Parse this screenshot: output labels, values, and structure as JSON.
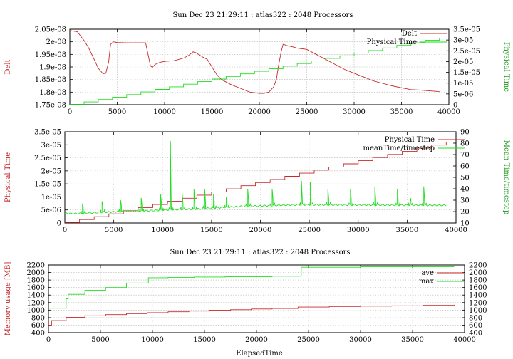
{
  "colors": {
    "red": "#c82a2a",
    "green": "#22dd22",
    "red_label": "#c02020",
    "green_label": "#1a9a1a"
  },
  "chart_data": [
    {
      "type": "line",
      "title": "Sun Dec 23 21:29:11 : atlas322 : 2048 Processors",
      "xlabel": "",
      "ylabel": "Delt",
      "y2label": "Physical Time",
      "xlim": [
        0,
        40000
      ],
      "ylim": [
        1.75e-08,
        2.05e-08
      ],
      "y2lim": [
        0,
        3.5e-05
      ],
      "xticks": [
        0,
        5000,
        10000,
        15000,
        20000,
        25000,
        30000,
        35000,
        40000
      ],
      "xtick_labels": [
        "0",
        "5000",
        "10000",
        "15000",
        "20000",
        "25000",
        "30000",
        "35000",
        "40000"
      ],
      "yticks": [
        1.75e-08,
        1.8e-08,
        1.85e-08,
        1.9e-08,
        1.95e-08,
        2e-08,
        2.05e-08
      ],
      "ytick_labels": [
        "1.75e-08",
        "1.8e-08",
        "1.85e-08",
        "1.9e-08",
        "1.95e-08",
        "2e-08",
        "2.05e-08"
      ],
      "y2ticks": [
        0,
        5e-06,
        1e-05,
        1.5e-05,
        2e-05,
        2.5e-05,
        3e-05,
        3.5e-05
      ],
      "y2tick_labels": [
        "0",
        "5e-06",
        "1e-05",
        "1.5e-05",
        "2e-05",
        "2.5e-05",
        "3e-05",
        "3.5e-05"
      ],
      "grid": true,
      "legend_placement": "top-right",
      "series": [
        {
          "name": "Delt",
          "color": "#c82a2a",
          "axis": "y",
          "x": [
            0,
            800,
            1000,
            1500,
            2000,
            2500,
            3000,
            3500,
            3800,
            4100,
            4300,
            4600,
            5000,
            6000,
            7000,
            8000,
            8200,
            8500,
            8700,
            9000,
            9500,
            10000,
            11000,
            12000,
            12500,
            13000,
            13300,
            14000,
            14500,
            15000,
            15500,
            16000,
            17000,
            18000,
            19000,
            20000,
            20500,
            21000,
            21500,
            21800,
            22000,
            22300,
            22500,
            22700,
            22900,
            23500,
            24000,
            25000,
            26000,
            27000,
            28000,
            29000,
            30000,
            31000,
            32000,
            33000,
            34000,
            35000,
            36000,
            37000,
            38000,
            39000
          ],
          "y": [
            2.045e-08,
            2.04e-08,
            2.03e-08,
            2.005e-08,
            1.975e-08,
            1.935e-08,
            1.895e-08,
            1.873e-08,
            1.875e-08,
            1.92e-08,
            1.99e-08,
            2e-08,
            1.997e-08,
            1.996e-08,
            1.996e-08,
            1.996e-08,
            1.96e-08,
            1.905e-08,
            1.898e-08,
            1.91e-08,
            1.918e-08,
            1.922e-08,
            1.925e-08,
            1.935e-08,
            1.945e-08,
            1.96e-08,
            1.957e-08,
            1.94e-08,
            1.93e-08,
            1.9e-08,
            1.87e-08,
            1.85e-08,
            1.83e-08,
            1.815e-08,
            1.8e-08,
            1.795e-08,
            1.795e-08,
            1.8e-08,
            1.82e-08,
            1.85e-08,
            1.9e-08,
            1.96e-08,
            1.99e-08,
            1.988e-08,
            1.985e-08,
            1.98e-08,
            1.975e-08,
            1.97e-08,
            1.95e-08,
            1.93e-08,
            1.91e-08,
            1.89e-08,
            1.875e-08,
            1.86e-08,
            1.845e-08,
            1.835e-08,
            1.825e-08,
            1.817e-08,
            1.81e-08,
            1.808e-08,
            1.805e-08,
            1.802e-08
          ]
        },
        {
          "name": "Physical Time",
          "color": "#22dd22",
          "axis": "y2",
          "step": true,
          "x": [
            0,
            1500,
            3000,
            4500,
            6000,
            7500,
            9000,
            10500,
            12000,
            13500,
            15000,
            16500,
            18000,
            19500,
            21000,
            22500,
            24000,
            25500,
            27000,
            28500,
            30000,
            31500,
            33000,
            34500,
            36000,
            37500,
            39000
          ],
          "y": [
            2e-07,
            1.3e-06,
            2.4e-06,
            3.5e-06,
            4.7e-06,
            5.9e-06,
            7.1e-06,
            8.3e-06,
            9.5e-06,
            1.07e-05,
            1.19e-05,
            1.31e-05,
            1.43e-05,
            1.55e-05,
            1.67e-05,
            1.79e-05,
            1.91e-05,
            2.03e-05,
            2.15e-05,
            2.27e-05,
            2.39e-05,
            2.51e-05,
            2.63e-05,
            2.75e-05,
            2.87e-05,
            2.99e-05,
            3.1e-05
          ]
        }
      ]
    },
    {
      "type": "line",
      "title": "",
      "xlabel": "",
      "ylabel": "Physical Time",
      "y2label": "Mean Time/timestep",
      "xlim": [
        0,
        40000
      ],
      "ylim": [
        0,
        3.5e-05
      ],
      "y2lim": [
        10,
        90
      ],
      "xticks": [
        0,
        5000,
        10000,
        15000,
        20000,
        25000,
        30000,
        35000,
        40000
      ],
      "xtick_labels": [
        "0",
        "5000",
        "10000",
        "15000",
        "20000",
        "25000",
        "30000",
        "35000",
        "40000"
      ],
      "yticks": [
        0,
        5e-06,
        1e-05,
        1.5e-05,
        2e-05,
        2.5e-05,
        3e-05,
        3.5e-05
      ],
      "ytick_labels": [
        "0",
        "5e-06",
        "1e-05",
        "1.5e-05",
        "2e-05",
        "2.5e-05",
        "3e-05",
        "3.5e-05"
      ],
      "y2ticks": [
        10,
        20,
        30,
        40,
        50,
        60,
        70,
        80,
        90
      ],
      "y2tick_labels": [
        "10",
        "20",
        "30",
        "40",
        "50",
        "60",
        "70",
        "80",
        "90"
      ],
      "grid": true,
      "legend_placement": "top-right",
      "series": [
        {
          "name": "Physical Time",
          "color": "#c82a2a",
          "axis": "y",
          "step": true,
          "x": [
            0,
            1500,
            3000,
            4500,
            6000,
            7500,
            9000,
            10500,
            12000,
            13500,
            15000,
            16500,
            18000,
            19500,
            21000,
            22500,
            24000,
            25500,
            27000,
            28500,
            30000,
            31500,
            33000,
            34500,
            36000,
            37500,
            39000
          ],
          "y": [
            2e-07,
            1.3e-06,
            2.4e-06,
            3.5e-06,
            4.7e-06,
            5.9e-06,
            7.1e-06,
            8.3e-06,
            9.5e-06,
            1.07e-05,
            1.19e-05,
            1.31e-05,
            1.43e-05,
            1.55e-05,
            1.67e-05,
            1.79e-05,
            1.91e-05,
            2.03e-05,
            2.15e-05,
            2.27e-05,
            2.39e-05,
            2.51e-05,
            2.63e-05,
            2.75e-05,
            2.87e-05,
            2.99e-05,
            3.1e-05
          ]
        },
        {
          "name": "meanTime/timestep",
          "color": "#22dd22",
          "axis": "y2",
          "baseline": [
            [
              0,
              18.5
            ],
            [
              1000,
              18.2
            ],
            [
              2000,
              18.5
            ],
            [
              4000,
              19.5
            ],
            [
              6000,
              20
            ],
            [
              8000,
              20.5
            ],
            [
              10500,
              21.5
            ],
            [
              12500,
              22
            ],
            [
              14000,
              22.5
            ],
            [
              18000,
              24.5
            ],
            [
              24000,
              26
            ],
            [
              39000,
              25.5
            ]
          ],
          "spikes": [
            {
              "x": 1800,
              "y": 27
            },
            {
              "x": 3800,
              "y": 29
            },
            {
              "x": 5700,
              "y": 30
            },
            {
              "x": 7800,
              "y": 32
            },
            {
              "x": 9800,
              "y": 35
            },
            {
              "x": 10800,
              "y": 82
            },
            {
              "x": 12000,
              "y": 36
            },
            {
              "x": 13200,
              "y": 40
            },
            {
              "x": 14300,
              "y": 40
            },
            {
              "x": 15200,
              "y": 35
            },
            {
              "x": 16500,
              "y": 33
            },
            {
              "x": 18700,
              "y": 40
            },
            {
              "x": 21200,
              "y": 40
            },
            {
              "x": 24200,
              "y": 47
            },
            {
              "x": 25100,
              "y": 46
            },
            {
              "x": 26900,
              "y": 40
            },
            {
              "x": 29200,
              "y": 40
            },
            {
              "x": 31700,
              "y": 42
            },
            {
              "x": 34000,
              "y": 40
            },
            {
              "x": 35300,
              "y": 29
            },
            {
              "x": 36700,
              "y": 42
            }
          ]
        }
      ]
    },
    {
      "type": "line",
      "title": "Sun Dec 23 21:29:11 : atlas322 : 2048 Processors",
      "xlabel": "ElapsedTime",
      "ylabel": "Memory usage [MB]",
      "y2label": "",
      "xlim": [
        0,
        40000
      ],
      "ylim": [
        400,
        2200
      ],
      "y2lim": [
        400,
        2200
      ],
      "xticks": [
        0,
        5000,
        10000,
        15000,
        20000,
        25000,
        30000,
        35000,
        40000
      ],
      "xtick_labels": [
        "0",
        "5000",
        "10000",
        "15000",
        "20000",
        "25000",
        "30000",
        "35000",
        "40000"
      ],
      "yticks": [
        400,
        600,
        800,
        1000,
        1200,
        1400,
        1600,
        1800,
        2000,
        2200
      ],
      "ytick_labels": [
        "400",
        "600",
        "800",
        "1000",
        "1200",
        "1400",
        "1600",
        "1800",
        "2000",
        "2200"
      ],
      "y2ticks": [
        400,
        600,
        800,
        1000,
        1200,
        1400,
        1600,
        1800,
        2000,
        2200
      ],
      "y2tick_labels": [
        "400",
        "600",
        "800",
        "1000",
        "1200",
        "1400",
        "1600",
        "1800",
        "2000",
        "2200"
      ],
      "grid": true,
      "legend_placement": "top-right",
      "series": [
        {
          "name": "ave",
          "color": "#c82a2a",
          "axis": "y",
          "step": true,
          "x": [
            0,
            300,
            1700,
            3500,
            5500,
            7500,
            9500,
            11500,
            13500,
            15500,
            17500,
            19500,
            21500,
            24000,
            27000,
            30000,
            33000,
            36000,
            39000
          ],
          "y": [
            600,
            720,
            810,
            850,
            880,
            905,
            930,
            955,
            975,
            995,
            1010,
            1030,
            1045,
            1080,
            1095,
            1105,
            1115,
            1125,
            1140
          ]
        },
        {
          "name": "max",
          "color": "#22dd22",
          "axis": "y",
          "step": true,
          "x": [
            0,
            300,
            1700,
            1900,
            3500,
            5500,
            7500,
            9600,
            11500,
            14000,
            17000,
            20000,
            21500,
            24000,
            24300,
            30000,
            39000
          ],
          "y": [
            1050,
            1050,
            1300,
            1420,
            1530,
            1600,
            1720,
            1860,
            1870,
            1880,
            1890,
            1890,
            1900,
            1900,
            2140,
            2150,
            2150
          ]
        }
      ]
    }
  ]
}
